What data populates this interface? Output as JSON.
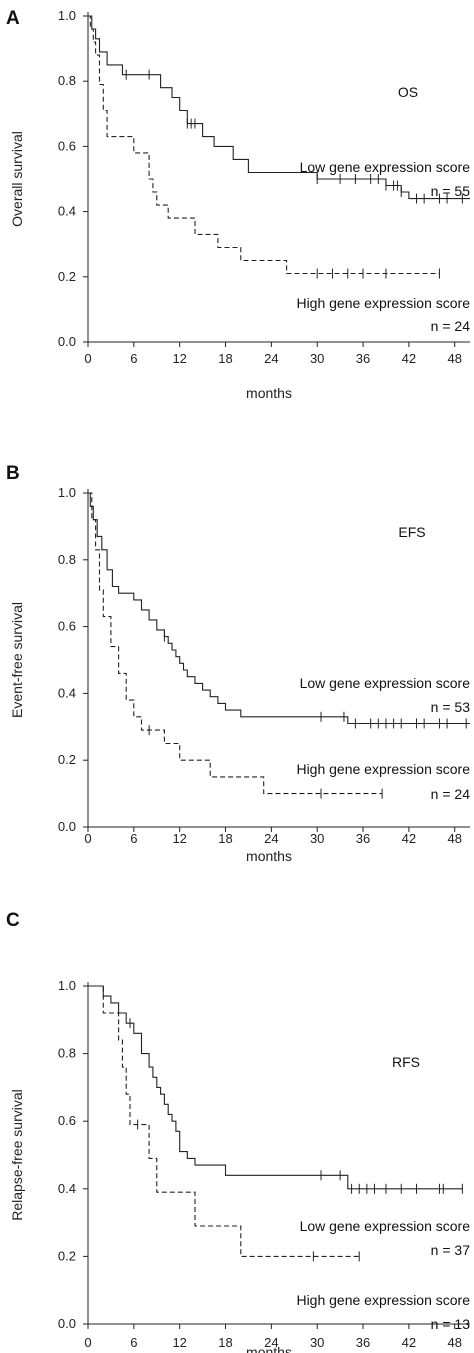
{
  "chart_data": [
    {
      "type": "line",
      "panel_label": "A",
      "endpoint": "OS",
      "ylabel": "Overall survival",
      "xlabel": "months",
      "xlim": [
        0,
        50
      ],
      "ylim": [
        0,
        1.0
      ],
      "x_ticks": [
        "0",
        "6",
        "12",
        "18",
        "24",
        "30",
        "36",
        "42",
        "48"
      ],
      "y_ticks": [
        "0.0",
        "0.2",
        "0.4",
        "0.6",
        "0.8",
        "1.0"
      ],
      "series": [
        {
          "name": "Low gene expression score",
          "n_label": "n = 55",
          "style": "solid",
          "steps": [
            [
              0,
              1.0
            ],
            [
              0.5,
              0.96
            ],
            [
              1.0,
              0.93
            ],
            [
              1.5,
              0.89
            ],
            [
              2.5,
              0.85
            ],
            [
              4.5,
              0.82
            ],
            [
              9.5,
              0.78
            ],
            [
              11,
              0.75
            ],
            [
              12,
              0.71
            ],
            [
              13,
              0.67
            ],
            [
              15,
              0.63
            ],
            [
              16.5,
              0.6
            ],
            [
              19,
              0.56
            ],
            [
              21,
              0.52
            ],
            [
              30,
              0.5
            ],
            [
              39,
              0.48
            ],
            [
              41,
              0.46
            ],
            [
              42,
              0.44
            ],
            [
              50,
              0.44
            ]
          ],
          "censor_x": [
            5,
            8,
            13,
            13.5,
            14,
            30,
            33,
            35,
            37,
            38,
            39,
            40,
            40.5,
            41,
            43,
            44,
            46,
            47,
            49
          ]
        },
        {
          "name": "High gene expression score",
          "n_label": "n = 24",
          "style": "dashed",
          "steps": [
            [
              0,
              1.0
            ],
            [
              0.3,
              0.96
            ],
            [
              0.7,
              0.92
            ],
            [
              1.0,
              0.88
            ],
            [
              1.5,
              0.79
            ],
            [
              2,
              0.71
            ],
            [
              2.5,
              0.63
            ],
            [
              6,
              0.58
            ],
            [
              8,
              0.5
            ],
            [
              8.5,
              0.46
            ],
            [
              9,
              0.42
            ],
            [
              10.5,
              0.38
            ],
            [
              14,
              0.33
            ],
            [
              17,
              0.29
            ],
            [
              20,
              0.25
            ],
            [
              26,
              0.21
            ],
            [
              46,
              0.21
            ]
          ],
          "censor_x": [
            30,
            32,
            34,
            36,
            39,
            46
          ]
        }
      ]
    },
    {
      "type": "line",
      "panel_label": "B",
      "endpoint": "EFS",
      "ylabel": "Event-free survival",
      "xlabel": "months",
      "xlim": [
        0,
        50
      ],
      "ylim": [
        0,
        1.0
      ],
      "x_ticks": [
        "0",
        "6",
        "12",
        "18",
        "24",
        "30",
        "36",
        "42",
        "48"
      ],
      "y_ticks": [
        "0.0",
        "0.2",
        "0.4",
        "0.6",
        "0.8",
        "1.0"
      ],
      "series": [
        {
          "name": "Low gene expression score",
          "n_label": "n = 53",
          "style": "solid",
          "steps": [
            [
              0,
              1.0
            ],
            [
              0.3,
              0.96
            ],
            [
              0.7,
              0.92
            ],
            [
              1.2,
              0.87
            ],
            [
              1.8,
              0.83
            ],
            [
              2.5,
              0.77
            ],
            [
              3.2,
              0.72
            ],
            [
              4,
              0.7
            ],
            [
              6,
              0.68
            ],
            [
              7,
              0.65
            ],
            [
              8,
              0.62
            ],
            [
              9,
              0.59
            ],
            [
              10,
              0.57
            ],
            [
              10.5,
              0.55
            ],
            [
              11,
              0.53
            ],
            [
              11.5,
              0.51
            ],
            [
              12,
              0.49
            ],
            [
              12.5,
              0.47
            ],
            [
              13,
              0.45
            ],
            [
              14,
              0.43
            ],
            [
              15,
              0.41
            ],
            [
              16,
              0.39
            ],
            [
              17,
              0.37
            ],
            [
              18,
              0.35
            ],
            [
              20,
              0.33
            ],
            [
              34,
              0.31
            ],
            [
              50,
              0.31
            ]
          ],
          "censor_x": [
            10,
            30.5,
            33.5,
            35,
            37,
            38,
            39,
            40,
            41,
            43,
            44,
            46,
            47,
            49.5
          ]
        },
        {
          "name": "High gene expression score",
          "n_label": "n = 24",
          "style": "dashed",
          "steps": [
            [
              0,
              1.0
            ],
            [
              0.5,
              0.92
            ],
            [
              1.0,
              0.83
            ],
            [
              1.5,
              0.71
            ],
            [
              2,
              0.63
            ],
            [
              3,
              0.54
            ],
            [
              4,
              0.46
            ],
            [
              5,
              0.38
            ],
            [
              6,
              0.33
            ],
            [
              7,
              0.29
            ],
            [
              10,
              0.25
            ],
            [
              12,
              0.2
            ],
            [
              16,
              0.15
            ],
            [
              23,
              0.1
            ],
            [
              38.5,
              0.1
            ]
          ],
          "censor_x": [
            8,
            30.5,
            38.5
          ]
        }
      ]
    },
    {
      "type": "line",
      "panel_label": "C",
      "endpoint": "RFS",
      "ylabel": "Relapse-free survival",
      "xlabel": "months",
      "xlim": [
        0,
        50
      ],
      "ylim": [
        0,
        1.0
      ],
      "x_ticks": [
        "0",
        "6",
        "12",
        "18",
        "24",
        "30",
        "36",
        "42",
        "48"
      ],
      "y_ticks": [
        "0.0",
        "0.2",
        "0.4",
        "0.6",
        "0.8",
        "1.0"
      ],
      "series": [
        {
          "name": "Low gene expression score",
          "n_label": "n = 37",
          "style": "solid",
          "steps": [
            [
              0,
              1.0
            ],
            [
              2,
              0.97
            ],
            [
              3,
              0.95
            ],
            [
              4,
              0.92
            ],
            [
              5,
              0.89
            ],
            [
              6,
              0.86
            ],
            [
              7,
              0.8
            ],
            [
              8,
              0.76
            ],
            [
              8.5,
              0.73
            ],
            [
              9,
              0.7
            ],
            [
              9.5,
              0.68
            ],
            [
              10,
              0.65
            ],
            [
              10.5,
              0.62
            ],
            [
              11,
              0.6
            ],
            [
              11.5,
              0.57
            ],
            [
              12,
              0.51
            ],
            [
              13,
              0.49
            ],
            [
              14,
              0.47
            ],
            [
              18,
              0.44
            ],
            [
              34,
              0.4
            ],
            [
              49,
              0.4
            ]
          ],
          "censor_x": [
            5.5,
            30.5,
            33,
            34.5,
            35.5,
            36.5,
            37.5,
            39,
            41,
            43,
            46,
            46.5,
            49
          ]
        },
        {
          "name": "High gene expression score",
          "n_label": "n = 13",
          "style": "dashed",
          "steps": [
            [
              0,
              1.0
            ],
            [
              2,
              0.92
            ],
            [
              4,
              0.84
            ],
            [
              4.5,
              0.76
            ],
            [
              5,
              0.68
            ],
            [
              5.5,
              0.59
            ],
            [
              8,
              0.49
            ],
            [
              9,
              0.39
            ],
            [
              14,
              0.29
            ],
            [
              20,
              0.2
            ],
            [
              35.5,
              0.2
            ]
          ],
          "censor_x": [
            6.5,
            29.5,
            35.5
          ]
        }
      ]
    }
  ]
}
